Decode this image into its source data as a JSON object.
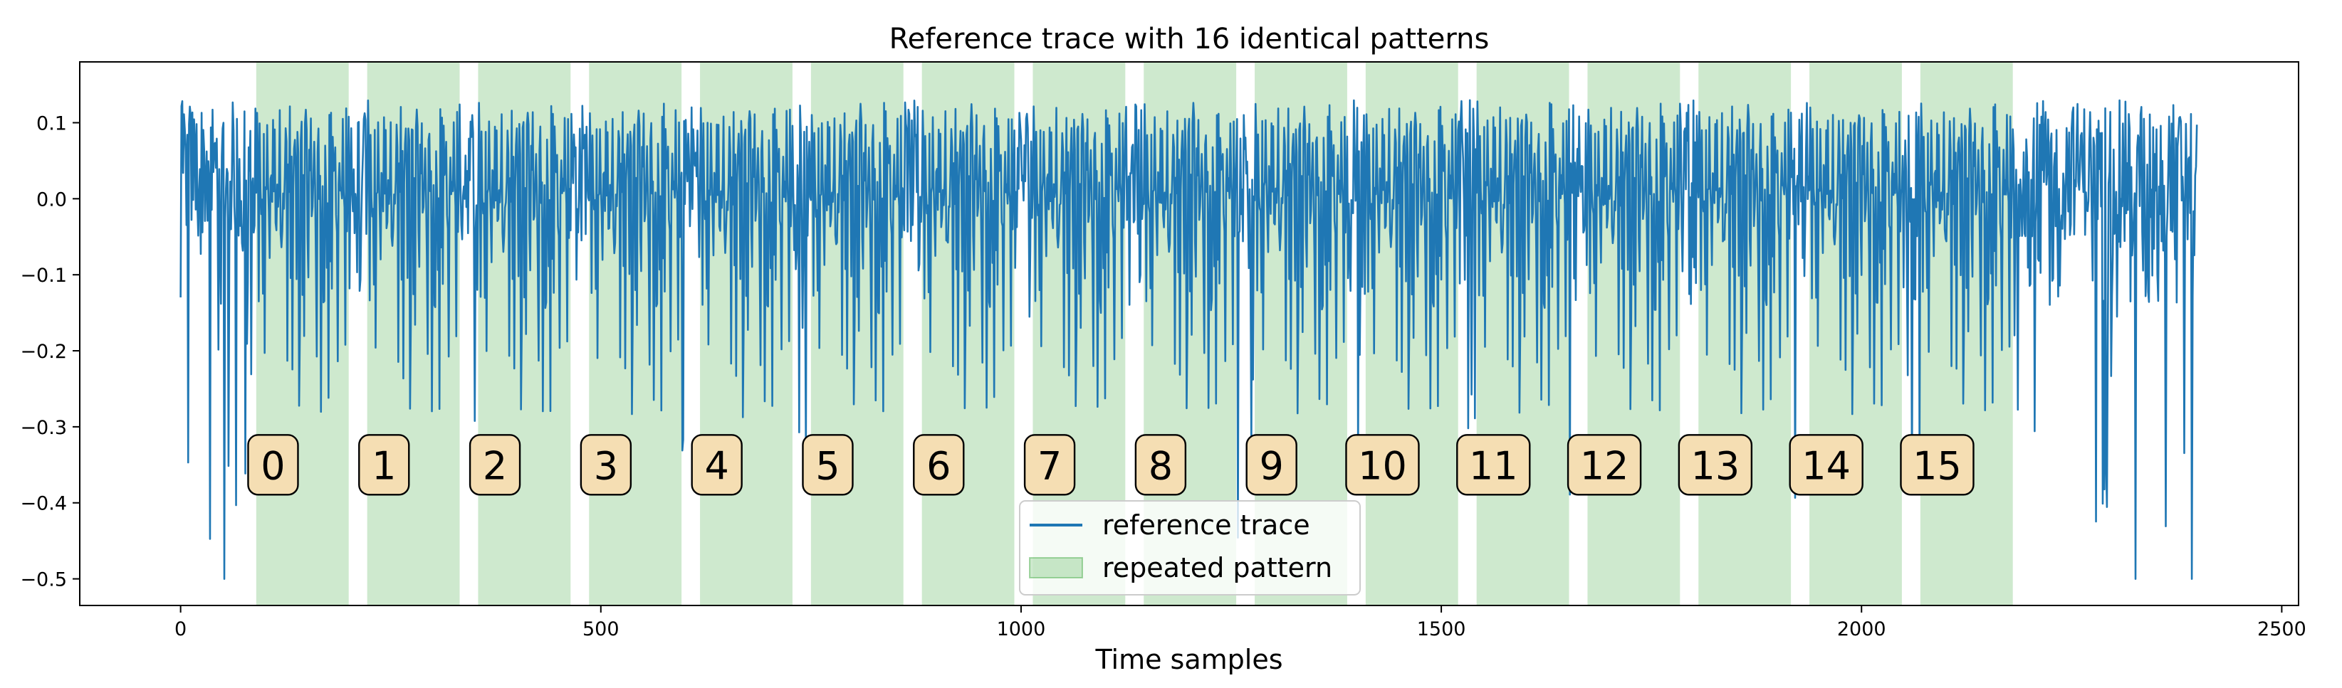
{
  "chart_data": {
    "type": "line",
    "title": "Reference trace with 16 identical patterns",
    "xlabel": "Time samples",
    "ylabel": "",
    "xlim": [
      -120,
      2520
    ],
    "ylim": [
      -0.535,
      0.18
    ],
    "xticks": [
      0,
      500,
      1000,
      1500,
      2000,
      2500
    ],
    "yticks": [
      -0.5,
      -0.4,
      -0.3,
      -0.2,
      -0.1,
      0.0,
      0.1
    ],
    "xtick_labels": [
      "0",
      "500",
      "1000",
      "1500",
      "2000",
      "2500"
    ],
    "ytick_labels": [
      "−0.5",
      "−0.4",
      "−0.3",
      "−0.2",
      "−0.1",
      "0.0",
      "0.1"
    ],
    "grid": false,
    "legend_position": "lower center",
    "series": [
      {
        "name": "reference trace",
        "color": "#1f77b4",
        "n_samples": 2400,
        "pattern_start": 90,
        "pattern_length": 110,
        "pattern_period": 132,
        "pattern_count": 16,
        "y_min_approx": -0.5,
        "y_max_approx": 0.15
      }
    ],
    "shaded_regions": {
      "name": "repeated pattern",
      "color": "#2ca02c",
      "alpha": 0.23,
      "regions": [
        {
          "label": "0",
          "x_start": 90,
          "x_end": 200
        },
        {
          "label": "1",
          "x_start": 222,
          "x_end": 332
        },
        {
          "label": "2",
          "x_start": 354,
          "x_end": 464
        },
        {
          "label": "3",
          "x_start": 486,
          "x_end": 596
        },
        {
          "label": "4",
          "x_start": 618,
          "x_end": 728
        },
        {
          "label": "5",
          "x_start": 750,
          "x_end": 860
        },
        {
          "label": "6",
          "x_start": 882,
          "x_end": 992
        },
        {
          "label": "7",
          "x_start": 1014,
          "x_end": 1124
        },
        {
          "label": "8",
          "x_start": 1146,
          "x_end": 1256
        },
        {
          "label": "9",
          "x_start": 1278,
          "x_end": 1388
        },
        {
          "label": "10",
          "x_start": 1410,
          "x_end": 1520
        },
        {
          "label": "11",
          "x_start": 1542,
          "x_end": 1652
        },
        {
          "label": "12",
          "x_start": 1674,
          "x_end": 1784
        },
        {
          "label": "13",
          "x_start": 1806,
          "x_end": 1916
        },
        {
          "label": "14",
          "x_start": 1938,
          "x_end": 2048
        },
        {
          "label": "15",
          "x_start": 2070,
          "x_end": 2180
        }
      ],
      "label_y": -0.35,
      "label_box_color": "#f5deb3"
    },
    "legend": [
      {
        "label": "reference trace",
        "kind": "line",
        "color": "#1f77b4"
      },
      {
        "label": "repeated pattern",
        "kind": "patch",
        "color": "#2ca02c"
      }
    ]
  }
}
